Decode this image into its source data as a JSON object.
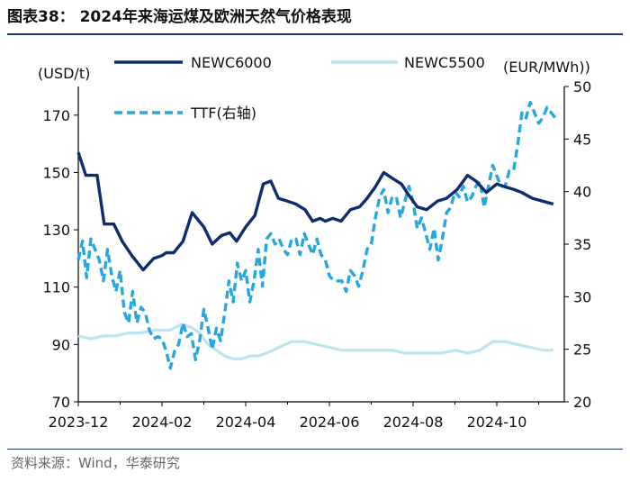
{
  "header": {
    "title": "图表38： 2024年来海运煤及欧洲天然气价格表现"
  },
  "footer": {
    "source": "资料来源：Wind，华泰研究"
  },
  "chart_data": {
    "type": "line",
    "left_unit": "(USD/t)",
    "right_unit": "(EUR/MWh))",
    "left_axis": {
      "ylim": [
        70,
        180
      ],
      "ticks": [
        70,
        90,
        110,
        130,
        150,
        170
      ]
    },
    "right_axis": {
      "ylim": [
        20,
        50
      ],
      "ticks": [
        20,
        25,
        30,
        35,
        40,
        45,
        50
      ]
    },
    "x_ticks": [
      "2023-12",
      "2024-02",
      "2024-04",
      "2024-06",
      "2024-08",
      "2024-10"
    ],
    "x_range": [
      0,
      11.6
    ],
    "series": [
      {
        "name": "NEWC6000",
        "axis": "left",
        "color": "#0f2d6e",
        "style": "solid",
        "x": [
          0,
          0.18,
          0.45,
          0.62,
          0.85,
          1.05,
          1.28,
          1.55,
          1.8,
          2.0,
          2.1,
          2.28,
          2.5,
          2.72,
          3.0,
          3.2,
          3.42,
          3.62,
          3.78,
          4.0,
          4.22,
          4.42,
          4.6,
          4.78,
          5.0,
          5.2,
          5.42,
          5.6,
          5.78,
          5.9,
          6.08,
          6.28,
          6.5,
          6.72,
          6.9,
          7.1,
          7.3,
          7.5,
          7.72,
          7.9,
          8.1,
          8.32,
          8.58,
          8.8,
          9.05,
          9.3,
          9.5,
          9.75,
          10.0,
          10.2,
          10.42,
          10.6,
          10.85,
          11.1,
          11.35
        ],
        "values": [
          157,
          149,
          149,
          132,
          132,
          126,
          121,
          116,
          120,
          121,
          122,
          122,
          126,
          136,
          131,
          125,
          128,
          129,
          126,
          131,
          135,
          146,
          147,
          141,
          140,
          139,
          137,
          133,
          134,
          133,
          134,
          133,
          137,
          138,
          141,
          145,
          150,
          148,
          146,
          142,
          138,
          137,
          140,
          141,
          144,
          149,
          147,
          143,
          146,
          145,
          144,
          143,
          141,
          140,
          139
        ]
      },
      {
        "name": "NEWC5500",
        "axis": "left",
        "color": "#bde3f1",
        "style": "solid",
        "x": [
          0,
          0.3,
          0.6,
          0.9,
          1.2,
          1.5,
          1.8,
          2.0,
          2.2,
          2.45,
          2.7,
          2.9,
          3.1,
          3.3,
          3.5,
          3.7,
          3.9,
          4.1,
          4.3,
          4.5,
          4.8,
          5.1,
          5.4,
          5.7,
          6.0,
          6.3,
          6.6,
          6.9,
          7.2,
          7.5,
          7.8,
          8.1,
          8.4,
          8.7,
          9.0,
          9.3,
          9.6,
          9.9,
          10.2,
          10.5,
          10.8,
          11.1,
          11.35
        ],
        "values": [
          93,
          92,
          93,
          93,
          94,
          94,
          95,
          95,
          95,
          97,
          96,
          94,
          90,
          88,
          86,
          85,
          85,
          86,
          86,
          87,
          89,
          91,
          91,
          90,
          89,
          88,
          88,
          88,
          88,
          88,
          87,
          87,
          87,
          87,
          88,
          87,
          88,
          91,
          91,
          90,
          89,
          88,
          88
        ]
      },
      {
        "name": "TTF(右轴)",
        "axis": "right",
        "color": "#27a6df",
        "style": "dashed",
        "x": [
          0,
          0.1,
          0.2,
          0.3,
          0.4,
          0.5,
          0.6,
          0.7,
          0.8,
          0.9,
          1.0,
          1.1,
          1.2,
          1.3,
          1.4,
          1.5,
          1.6,
          1.7,
          1.8,
          1.9,
          2.0,
          2.1,
          2.2,
          2.3,
          2.4,
          2.5,
          2.6,
          2.7,
          2.8,
          2.9,
          3.0,
          3.1,
          3.2,
          3.3,
          3.4,
          3.5,
          3.6,
          3.7,
          3.8,
          3.9,
          4.0,
          4.1,
          4.2,
          4.3,
          4.4,
          4.5,
          4.6,
          4.7,
          4.8,
          4.9,
          5.0,
          5.1,
          5.2,
          5.3,
          5.4,
          5.5,
          5.6,
          5.7,
          5.8,
          5.9,
          6.0,
          6.1,
          6.2,
          6.3,
          6.4,
          6.5,
          6.6,
          6.7,
          6.8,
          6.9,
          7.0,
          7.1,
          7.2,
          7.3,
          7.4,
          7.5,
          7.6,
          7.7,
          7.8,
          7.9,
          8.0,
          8.1,
          8.2,
          8.3,
          8.4,
          8.5,
          8.6,
          8.7,
          8.8,
          8.9,
          9.0,
          9.1,
          9.2,
          9.3,
          9.4,
          9.5,
          9.6,
          9.7,
          9.8,
          9.9,
          10.0,
          10.1,
          10.2,
          10.3,
          10.4,
          10.5,
          10.6,
          10.7,
          10.8,
          10.9,
          11.0,
          11.1,
          11.2,
          11.3,
          11.4
        ],
        "values": [
          33.5,
          35.3,
          31.8,
          35.5,
          34.5,
          33.5,
          31.5,
          34.5,
          32.0,
          30.5,
          32.5,
          28.5,
          27.5,
          30.5,
          27.5,
          29.0,
          28.5,
          26.8,
          26.0,
          26.2,
          26.0,
          24.8,
          23.2,
          24.8,
          25.5,
          27.5,
          26.2,
          26.5,
          24.0,
          25.8,
          28.8,
          27.0,
          25.0,
          27.0,
          25.8,
          28.5,
          31.5,
          29.5,
          33.2,
          31.5,
          32.5,
          29.5,
          31.5,
          34.5,
          31.0,
          35.5,
          36.0,
          35.0,
          35.5,
          34.5,
          34.0,
          35.5,
          35.5,
          34.0,
          36.0,
          35.0,
          34.0,
          35.5,
          34.0,
          33.5,
          32.0,
          31.5,
          31.5,
          31.5,
          30.5,
          32.5,
          32.0,
          31.0,
          32.5,
          34.5,
          35.0,
          37.5,
          39.5,
          40.2,
          38.0,
          39.5,
          39.5,
          37.5,
          39.0,
          40.5,
          39.0,
          36.5,
          37.5,
          36.0,
          34.5,
          36.5,
          33.5,
          35.5,
          38.0,
          38.5,
          40.0,
          39.5,
          40.5,
          39.0,
          39.5,
          40.5,
          41.0,
          38.5,
          40.5,
          42.5,
          41.5,
          40.5,
          40.5,
          42.0,
          42.0,
          44.5,
          47.5,
          47.0,
          48.5,
          47.5,
          46.5,
          47.0,
          48.0,
          47.5,
          47.0
        ]
      }
    ]
  }
}
